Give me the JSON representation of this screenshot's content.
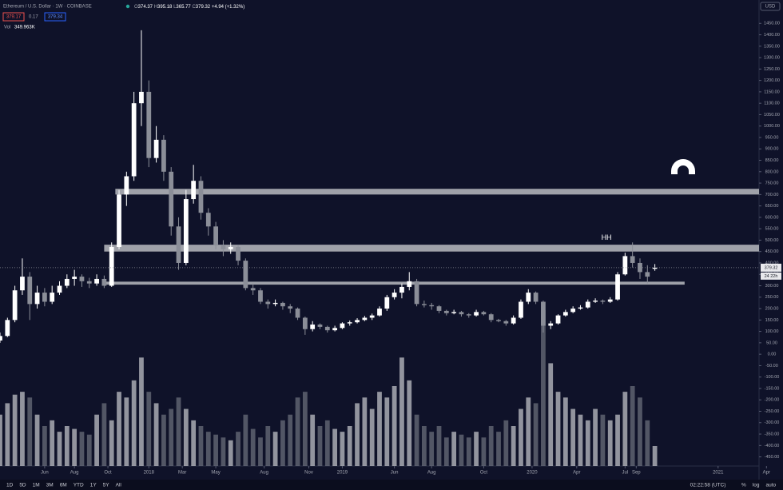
{
  "chart_data": {
    "type": "candlestick",
    "header": {
      "symbol": "Ethereum / U.S. Dollar · 1W · COINBASE",
      "ohlc_prefixes": [
        "O",
        "H",
        "L",
        "C"
      ],
      "change": "+4.94 (+1.32%)",
      "sell": "379.17",
      "spread": "0.17",
      "buy": "379.34",
      "volume_title": "Vol",
      "volume_value_label": "349.963K"
    },
    "currency": "USD",
    "countdown": "24 22h",
    "annotation": {
      "text": "HH",
      "x": 163,
      "y": 510
    },
    "up_color": "#ffffff",
    "down_color": "#8b8e98",
    "level_color": "#b9bbc0",
    "levels": [
      {
        "low": 700,
        "high": 725,
        "x_start": 31,
        "x_end": 204
      },
      {
        "low": 450,
        "high": 480,
        "x_start": 28,
        "x_end": 204
      },
      {
        "low": 305,
        "high": 318,
        "x_start": 28,
        "x_end": 184
      }
    ],
    "xlim": [
      0,
      204
    ],
    "ylim": [
      -490,
      1500
    ],
    "volume_lim": [
      0,
      2800
    ],
    "x": [
      0,
      2,
      4,
      6,
      8,
      10,
      12,
      14,
      16,
      18,
      20,
      22,
      24,
      26,
      28,
      30,
      32,
      34,
      36,
      38,
      40,
      42,
      44,
      46,
      48,
      50,
      52,
      54,
      56,
      58,
      60,
      62,
      64,
      66,
      68,
      70,
      72,
      74,
      76,
      78,
      80,
      82,
      84,
      86,
      88,
      90,
      92,
      94,
      96,
      98,
      100,
      102,
      104,
      106,
      108,
      110,
      112,
      114,
      116,
      118,
      120,
      122,
      124,
      126,
      128,
      130,
      132,
      134,
      136,
      138,
      140,
      142,
      144,
      146,
      148,
      150,
      152,
      154,
      156,
      158,
      160,
      162,
      164,
      166,
      168,
      170,
      172,
      174,
      176
    ],
    "ohlc": [
      [
        60,
        95,
        50,
        80
      ],
      [
        80,
        160,
        75,
        150
      ],
      [
        150,
        300,
        140,
        280
      ],
      [
        280,
        420,
        260,
        340
      ],
      [
        340,
        360,
        150,
        220
      ],
      [
        220,
        300,
        200,
        270
      ],
      [
        270,
        290,
        210,
        230
      ],
      [
        230,
        300,
        220,
        270
      ],
      [
        270,
        320,
        260,
        300
      ],
      [
        300,
        350,
        290,
        330
      ],
      [
        330,
        370,
        300,
        340
      ],
      [
        340,
        350,
        295,
        320
      ],
      [
        320,
        335,
        290,
        310
      ],
      [
        310,
        350,
        300,
        330
      ],
      [
        330,
        345,
        290,
        300
      ],
      [
        300,
        490,
        295,
        470
      ],
      [
        470,
        720,
        460,
        700
      ],
      [
        700,
        800,
        650,
        780
      ],
      [
        780,
        1150,
        760,
        1100
      ],
      [
        1100,
        1420,
        1000,
        1150
      ],
      [
        1150,
        1200,
        820,
        860
      ],
      [
        860,
        1000,
        840,
        940
      ],
      [
        940,
        960,
        760,
        800
      ],
      [
        800,
        820,
        520,
        560
      ],
      [
        560,
        600,
        370,
        400
      ],
      [
        400,
        720,
        390,
        680
      ],
      [
        680,
        830,
        660,
        760
      ],
      [
        760,
        780,
        590,
        620
      ],
      [
        620,
        640,
        520,
        560
      ],
      [
        560,
        580,
        460,
        480
      ],
      [
        480,
        500,
        430,
        460
      ],
      [
        460,
        490,
        440,
        470
      ],
      [
        470,
        480,
        390,
        410
      ],
      [
        410,
        420,
        280,
        290
      ],
      [
        290,
        310,
        260,
        280
      ],
      [
        280,
        290,
        220,
        230
      ],
      [
        230,
        240,
        200,
        220
      ],
      [
        220,
        240,
        210,
        225
      ],
      [
        225,
        230,
        195,
        210
      ],
      [
        210,
        220,
        180,
        200
      ],
      [
        200,
        205,
        150,
        160
      ],
      [
        160,
        165,
        85,
        110
      ],
      [
        110,
        145,
        100,
        130
      ],
      [
        130,
        135,
        110,
        120
      ],
      [
        120,
        125,
        95,
        105
      ],
      [
        105,
        125,
        100,
        115
      ],
      [
        115,
        140,
        110,
        135
      ],
      [
        135,
        148,
        125,
        140
      ],
      [
        140,
        158,
        135,
        150
      ],
      [
        150,
        168,
        145,
        160
      ],
      [
        160,
        178,
        150,
        170
      ],
      [
        170,
        210,
        165,
        200
      ],
      [
        200,
        260,
        190,
        250
      ],
      [
        250,
        285,
        240,
        270
      ],
      [
        270,
        310,
        245,
        295
      ],
      [
        295,
        360,
        280,
        320
      ],
      [
        320,
        330,
        210,
        220
      ],
      [
        220,
        235,
        205,
        215
      ],
      [
        215,
        225,
        195,
        210
      ],
      [
        210,
        215,
        180,
        190
      ],
      [
        190,
        195,
        170,
        180
      ],
      [
        180,
        195,
        175,
        185
      ],
      [
        185,
        190,
        165,
        175
      ],
      [
        175,
        180,
        160,
        170
      ],
      [
        170,
        195,
        165,
        185
      ],
      [
        185,
        190,
        170,
        175
      ],
      [
        175,
        180,
        140,
        150
      ],
      [
        150,
        155,
        140,
        145
      ],
      [
        145,
        150,
        125,
        135
      ],
      [
        135,
        170,
        130,
        160
      ],
      [
        160,
        240,
        155,
        230
      ],
      [
        230,
        285,
        220,
        270
      ],
      [
        270,
        275,
        220,
        230
      ],
      [
        230,
        235,
        95,
        125
      ],
      [
        125,
        145,
        110,
        135
      ],
      [
        135,
        175,
        130,
        170
      ],
      [
        170,
        195,
        165,
        185
      ],
      [
        185,
        210,
        180,
        200
      ],
      [
        200,
        215,
        195,
        205
      ],
      [
        205,
        240,
        200,
        230
      ],
      [
        230,
        245,
        225,
        235
      ],
      [
        235,
        240,
        220,
        230
      ],
      [
        230,
        250,
        225,
        240
      ],
      [
        240,
        360,
        235,
        350
      ],
      [
        350,
        445,
        345,
        430
      ],
      [
        430,
        490,
        380,
        400
      ],
      [
        400,
        420,
        330,
        360
      ],
      [
        360,
        390,
        310,
        340
      ],
      [
        374.37,
        395.18,
        365.77,
        379.32
      ]
    ],
    "volume": [
      900,
      1100,
      1250,
      1300,
      1200,
      900,
      700,
      800,
      600,
      700,
      650,
      600,
      550,
      900,
      1100,
      800,
      1300,
      1200,
      1500,
      1900,
      1300,
      1100,
      900,
      1000,
      1200,
      1000,
      800,
      700,
      600,
      550,
      500,
      450,
      600,
      900,
      650,
      500,
      700,
      600,
      800,
      900,
      1200,
      1300,
      900,
      700,
      800,
      650,
      600,
      700,
      1100,
      1200,
      1000,
      1300,
      1200,
      1400,
      1900,
      1500,
      900,
      700,
      600,
      700,
      500,
      600,
      550,
      500,
      600,
      500,
      700,
      600,
      800,
      700,
      1000,
      1200,
      1100,
      2730,
      1800,
      1300,
      1200,
      1000,
      900,
      800,
      1000,
      900,
      800,
      900,
      1300,
      1400,
      1200,
      800,
      349.963
    ],
    "xticks": [
      {
        "value": 12,
        "label": "Jun"
      },
      {
        "value": 20,
        "label": "Aug"
      },
      {
        "value": 29,
        "label": "Oct"
      },
      {
        "value": 40,
        "label": "2018"
      },
      {
        "value": 49,
        "label": "Mar"
      },
      {
        "value": 58,
        "label": "May"
      },
      {
        "value": 71,
        "label": "Aug"
      },
      {
        "value": 83,
        "label": "Nov"
      },
      {
        "value": 92,
        "label": "2019"
      },
      {
        "value": 106,
        "label": "Jun"
      },
      {
        "value": 116,
        "label": "Aug"
      },
      {
        "value": 130,
        "label": "Oct"
      },
      {
        "value": 143,
        "label": "2020"
      },
      {
        "value": 155,
        "label": "Apr"
      },
      {
        "value": 168,
        "label": "Jul"
      },
      {
        "value": 171,
        "label": "Sep"
      },
      {
        "value": 193,
        "label": "2021"
      },
      {
        "value": 206,
        "label": "Apr"
      }
    ],
    "yticks": [
      {
        "value": 1450,
        "label": "1450.00"
      },
      {
        "value": 1400,
        "label": "1400.00"
      },
      {
        "value": 1350,
        "label": "1350.00"
      },
      {
        "value": 1300,
        "label": "1300.00"
      },
      {
        "value": 1250,
        "label": "1250.00"
      },
      {
        "value": 1200,
        "label": "1200.00"
      },
      {
        "value": 1150,
        "label": "1150.00"
      },
      {
        "value": 1100,
        "label": "1100.00"
      },
      {
        "value": 1050,
        "label": "1050.00"
      },
      {
        "value": 1000,
        "label": "1000.00"
      },
      {
        "value": 950,
        "label": "950.00"
      },
      {
        "value": 900,
        "label": "900.00"
      },
      {
        "value": 850,
        "label": "850.00"
      },
      {
        "value": 800,
        "label": "800.00"
      },
      {
        "value": 750,
        "label": "750.00"
      },
      {
        "value": 700,
        "label": "700.00"
      },
      {
        "value": 650,
        "label": "650.00"
      },
      {
        "value": 600,
        "label": "600.00"
      },
      {
        "value": 550,
        "label": "550.00"
      },
      {
        "value": 500,
        "label": "500.00"
      },
      {
        "value": 450,
        "label": "450.00"
      },
      {
        "value": 400,
        "label": "400.00"
      },
      {
        "value": 350,
        "label": "350.00"
      },
      {
        "value": 300,
        "label": "300.00"
      },
      {
        "value": 250,
        "label": "250.00"
      },
      {
        "value": 200,
        "label": "200.00"
      },
      {
        "value": 150,
        "label": "150.00"
      },
      {
        "value": 100,
        "label": "100.00"
      },
      {
        "value": 50,
        "label": "50.00"
      },
      {
        "value": 0,
        "label": "0.00"
      },
      {
        "value": -50,
        "label": "-50.00"
      },
      {
        "value": -100,
        "label": "-100.00"
      },
      {
        "value": -150,
        "label": "-150.00"
      },
      {
        "value": -200,
        "label": "-200.00"
      },
      {
        "value": -250,
        "label": "-250.00"
      },
      {
        "value": -300,
        "label": "-300.00"
      },
      {
        "value": -350,
        "label": "-350.00"
      },
      {
        "value": -400,
        "label": "-400.00"
      },
      {
        "value": -450,
        "label": "-450.00"
      }
    ],
    "toolbar": {
      "ranges": [
        "1D",
        "5D",
        "1M",
        "3M",
        "6M",
        "YTD",
        "1Y",
        "5Y",
        "All"
      ],
      "clock": "02:22:58 (UTC)",
      "options": [
        "%",
        "log",
        "auto"
      ]
    }
  }
}
